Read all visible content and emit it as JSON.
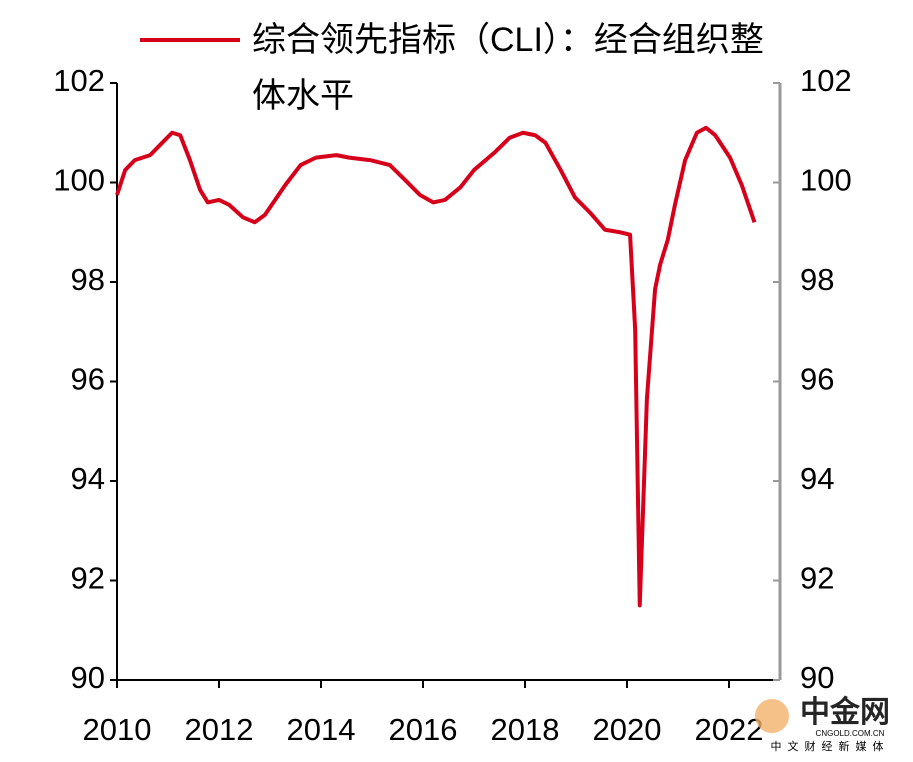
{
  "chart_data": {
    "type": "line",
    "x": [
      2010,
      2010.16,
      2010.35,
      2010.65,
      2010.84,
      2011.08,
      2011.24,
      2011.43,
      2011.63,
      2011.78,
      2012.0,
      2012.2,
      2012.47,
      2012.7,
      2012.9,
      2013.3,
      2013.6,
      2013.9,
      2014.3,
      2014.55,
      2014.96,
      2015.35,
      2015.65,
      2015.94,
      2016.2,
      2016.43,
      2016.73,
      2017.0,
      2017.4,
      2017.7,
      2017.96,
      2018.2,
      2018.4,
      2018.7,
      2018.98,
      2019.27,
      2019.57,
      2019.86,
      2020.06,
      2020.16,
      2020.25,
      2020.39,
      2020.55,
      2020.65,
      2020.8,
      2020.94,
      2021.14,
      2021.37,
      2021.55,
      2021.73,
      2022.02,
      2022.25,
      2022.5
    ],
    "series": [
      {
        "name": "综合领先指标（CLI）：经合组织整体水平",
        "color": "#d7001b",
        "values": [
          99.75,
          100.25,
          100.45,
          100.55,
          100.75,
          101.0,
          100.95,
          100.45,
          99.85,
          99.6,
          99.65,
          99.55,
          99.3,
          99.2,
          99.35,
          99.95,
          100.35,
          100.5,
          100.55,
          100.5,
          100.45,
          100.35,
          100.05,
          99.75,
          99.6,
          99.65,
          99.9,
          100.25,
          100.6,
          100.9,
          101.0,
          100.95,
          100.8,
          100.25,
          99.7,
          99.4,
          99.05,
          99.0,
          98.95,
          97.05,
          91.5,
          95.65,
          97.85,
          98.35,
          98.85,
          99.55,
          100.45,
          101.0,
          101.1,
          100.95,
          100.5,
          99.95,
          99.2
        ]
      }
    ],
    "xlim": [
      2010,
      2023
    ],
    "xticks": [
      2010,
      2012,
      2014,
      2016,
      2018,
      2020,
      2022
    ],
    "ylim": [
      90,
      102
    ],
    "yticks": [
      90,
      92,
      94,
      96,
      98,
      100,
      102
    ],
    "y2lim": [
      90,
      102
    ],
    "y2ticks": [
      90,
      92,
      94,
      96,
      98,
      100,
      102
    ],
    "legend": "top",
    "watermark": {
      "name": "中金网",
      "domain": "CNGOLD.COM.CN",
      "slogan": "中文财经新媒体"
    }
  }
}
